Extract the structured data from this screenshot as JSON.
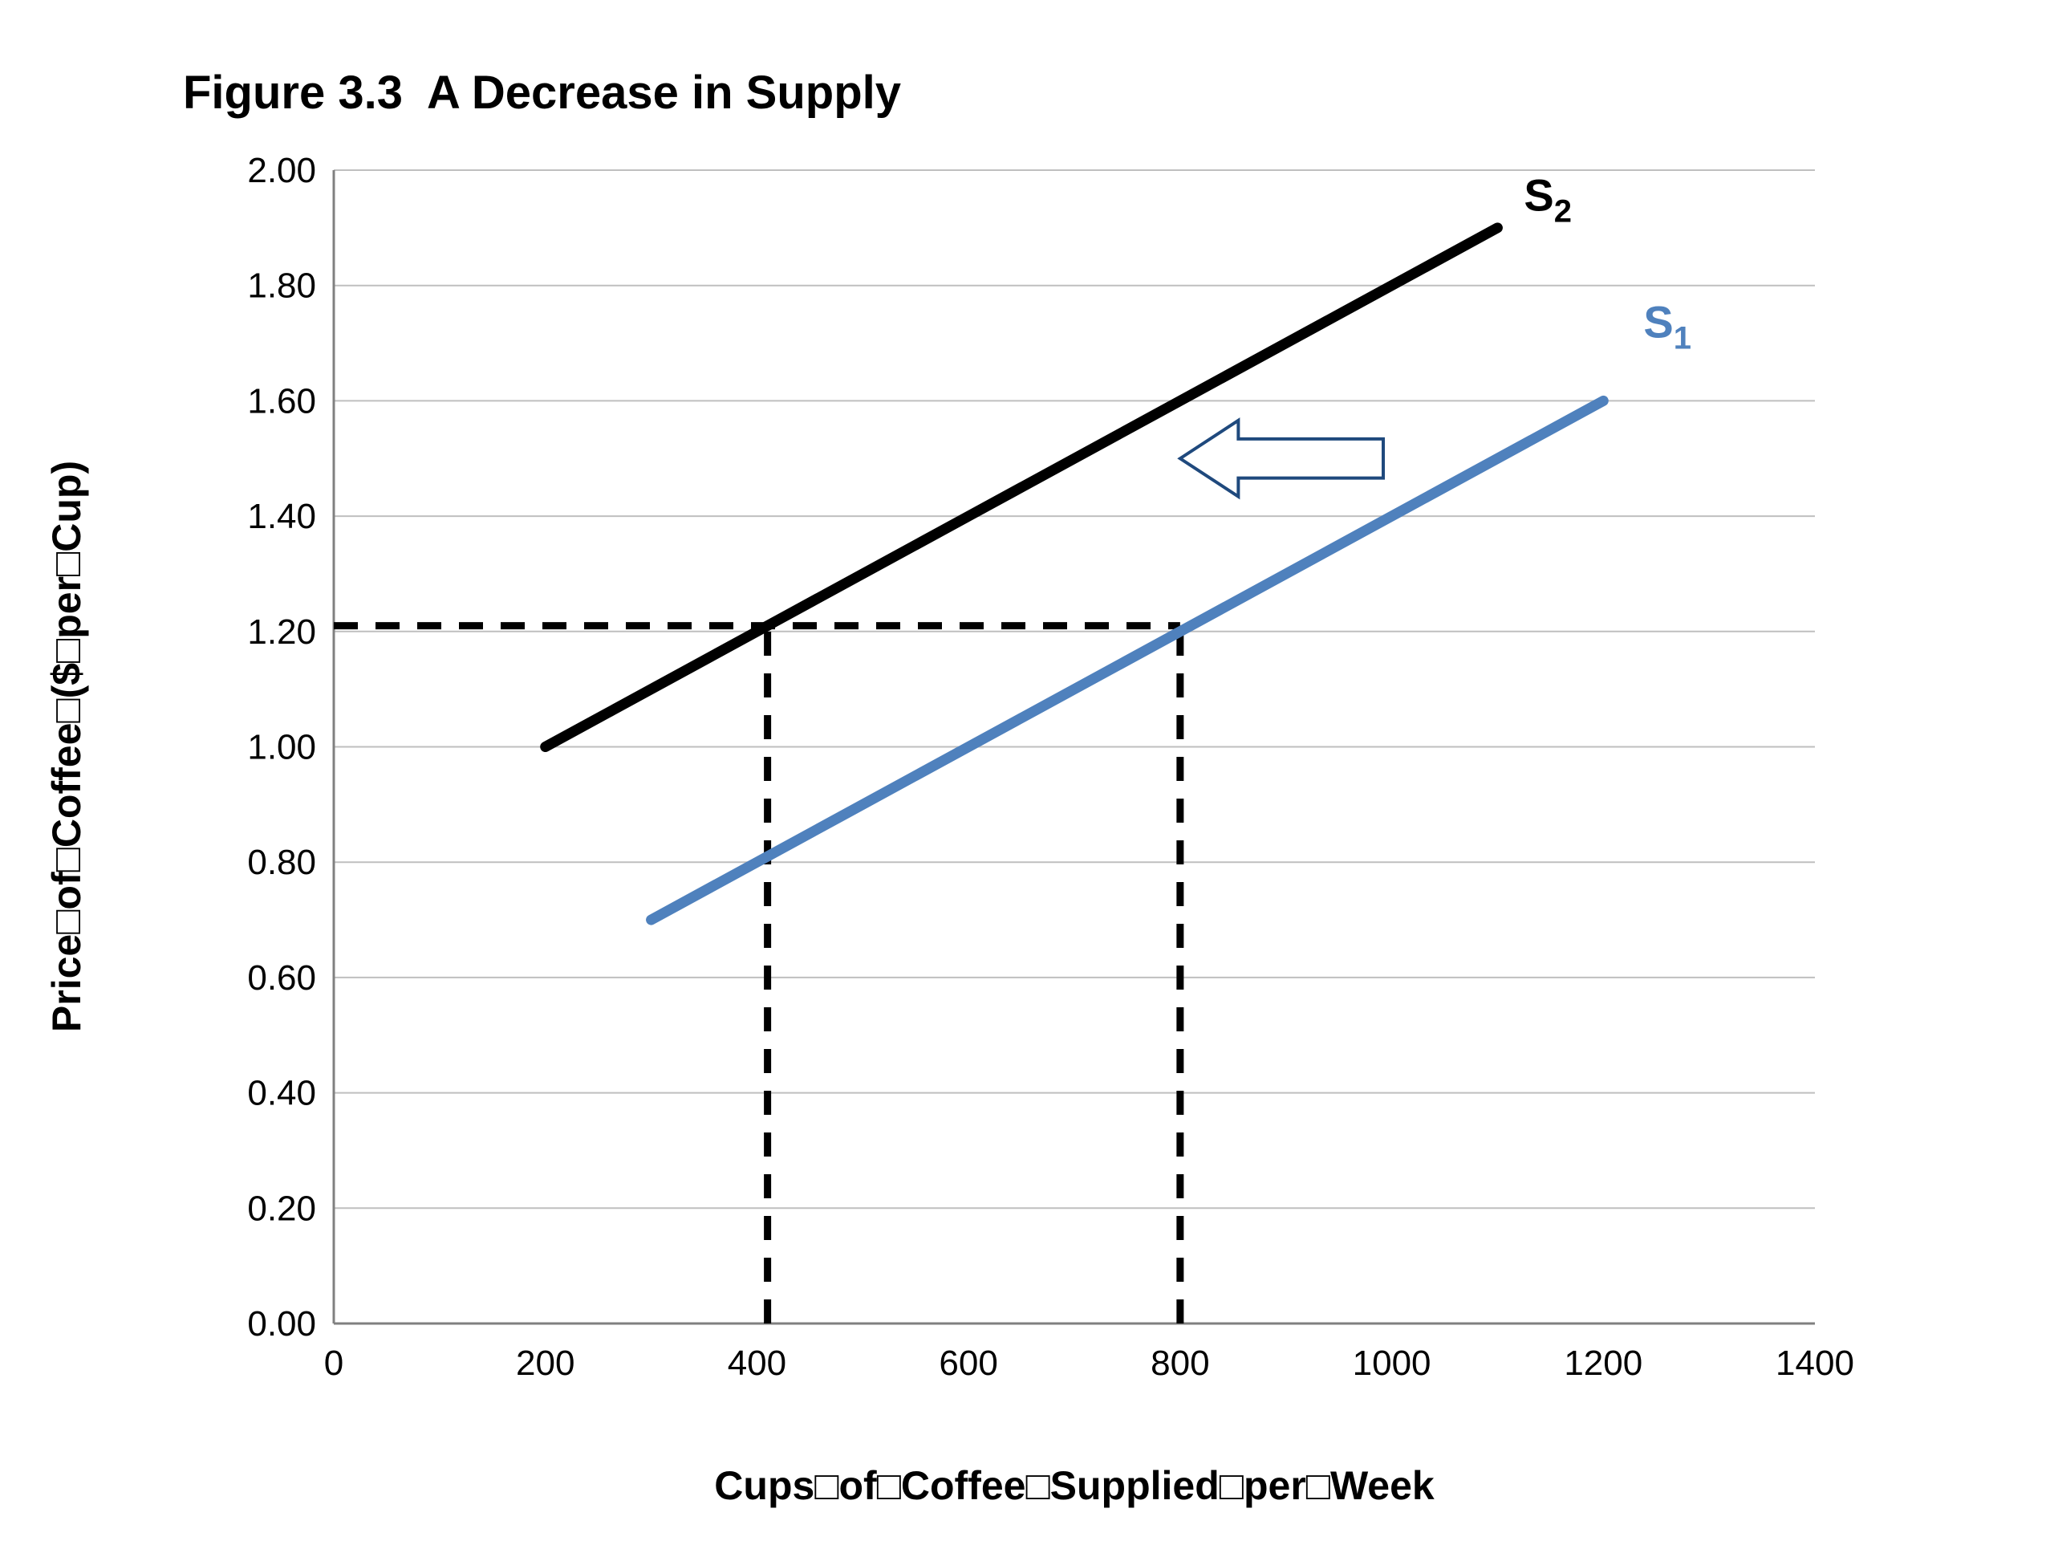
{
  "page": {
    "background": "#ffffff"
  },
  "chart_data": {
    "type": "line",
    "title": "Figure 3.3  A Decrease in Supply",
    "xlabel": "Cups□of□Coffee□Supplied□per□Week",
    "ylabel": "Price□of□Coffee□($□per□Cup)",
    "xlim": [
      0,
      1400
    ],
    "ylim": [
      0.0,
      2.0
    ],
    "xticks": [
      "0",
      "200",
      "400",
      "600",
      "800",
      "1000",
      "1200",
      "1400"
    ],
    "yticks": [
      "0.00",
      "0.20",
      "0.40",
      "0.60",
      "0.80",
      "1.00",
      "1.20",
      "1.40",
      "1.60",
      "1.80",
      "2.00"
    ],
    "grid": "horizontal",
    "grid_color": "#bfbfbf",
    "axis_color": "#808080",
    "legend_position": "none",
    "series": [
      {
        "name": "S2",
        "label_main": "S",
        "label_sub": "2",
        "color": "#000000",
        "points": [
          [
            200,
            1.0
          ],
          [
            1100,
            1.9
          ]
        ],
        "label_pos": [
          1125,
          1.93
        ]
      },
      {
        "name": "S1",
        "label_main": "S",
        "label_sub": "1",
        "color": "#4f81bd",
        "points": [
          [
            300,
            0.7
          ],
          [
            1200,
            1.6
          ]
        ],
        "label_pos": [
          1238,
          1.71
        ]
      }
    ],
    "dashed_guides": [
      {
        "name": "price-guide-1.20",
        "points": [
          [
            0,
            1.21
          ],
          [
            800,
            1.21
          ]
        ]
      },
      {
        "name": "quantity-guide-new-410",
        "points": [
          [
            410,
            0
          ],
          [
            410,
            1.21
          ]
        ]
      },
      {
        "name": "quantity-guide-old-800",
        "points": [
          [
            800,
            0
          ],
          [
            800,
            1.21
          ]
        ]
      }
    ],
    "shift_arrow": {
      "direction": "left",
      "color": "#1f497d",
      "fill": "#ffffff",
      "tip": [
        800,
        1.5
      ],
      "tail": [
        992,
        1.5
      ],
      "head_length_x": 55,
      "head_half_height_y": 0.066,
      "shaft_half_height_y": 0.034
    }
  }
}
